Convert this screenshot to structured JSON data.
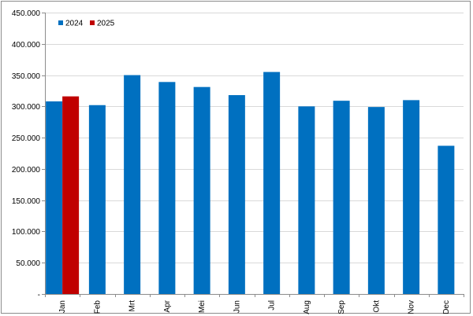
{
  "chart_data": {
    "type": "bar",
    "title": "",
    "xlabel": "",
    "ylabel": "",
    "categories": [
      "Jan",
      "Feb",
      "Mrt",
      "Apr",
      "Mei",
      "Jun",
      "Jul",
      "Aug",
      "Sep",
      "Okt",
      "Nov",
      "Dec"
    ],
    "series": [
      {
        "name": "2024",
        "color": "#0070c0",
        "values": [
          308000,
          302000,
          350000,
          339000,
          331000,
          318000,
          355000,
          300000,
          309000,
          299000,
          310000,
          237000
        ]
      },
      {
        "name": "2025",
        "color": "#c00000",
        "values": [
          316000,
          null,
          null,
          null,
          null,
          null,
          null,
          null,
          null,
          null,
          null,
          null
        ]
      }
    ],
    "ylim": [
      0,
      450000
    ],
    "yticks": [
      0,
      50000,
      100000,
      150000,
      200000,
      250000,
      300000,
      350000,
      400000,
      450000
    ],
    "ytick_labels": [
      "-",
      "50.000",
      "100.000",
      "150.000",
      "200.000",
      "250.000",
      "300.000",
      "350.000",
      "400.000",
      "450.000"
    ],
    "grid": true,
    "legend_position": "top-left"
  }
}
